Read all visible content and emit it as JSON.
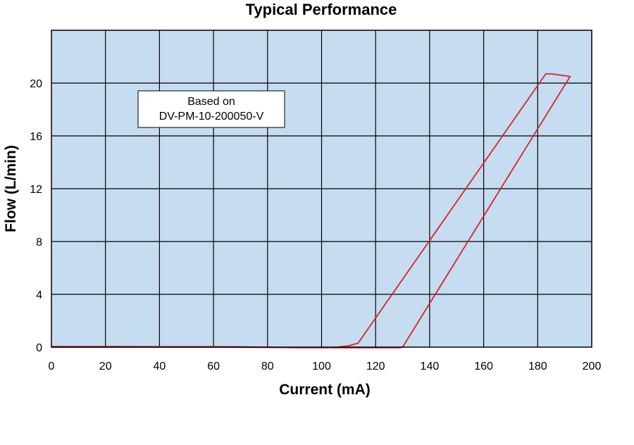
{
  "chart_data": {
    "type": "line",
    "title": "Typical Performance",
    "xlabel": "Current (mA)",
    "ylabel": "Flow (L/min)",
    "xlim": [
      0,
      200
    ],
    "ylim": [
      0,
      24
    ],
    "x_ticks": [
      0,
      20,
      40,
      60,
      80,
      100,
      120,
      140,
      160,
      180,
      200
    ],
    "y_ticks": [
      0,
      4,
      8,
      12,
      16,
      20
    ],
    "grid": true,
    "plot_background": "#c6dcf0",
    "series": [
      {
        "color": "#d8232a",
        "x": [
          0,
          20,
          40,
          60,
          72,
          90,
          100,
          106,
          110,
          113.5,
          183,
          185,
          192,
          130,
          129,
          100,
          60,
          20,
          0
        ],
        "y": [
          0.05,
          0.05,
          0.03,
          0.03,
          0.02,
          -0.05,
          -0.05,
          0.0,
          0.1,
          0.3,
          20.7,
          20.7,
          20.5,
          0.0,
          -0.05,
          -0.05,
          0.0,
          0.0,
          0.0
        ]
      }
    ],
    "annotations": [
      {
        "lines": [
          "Based on",
          "DV-PM-10-200050-V"
        ]
      }
    ]
  }
}
